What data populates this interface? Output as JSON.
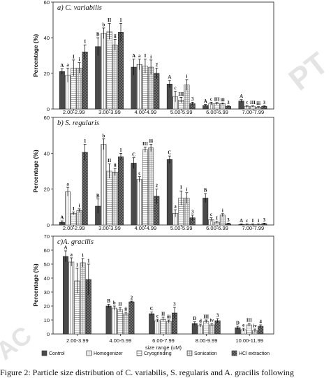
{
  "figure": {
    "caption": "Figure 2:   Particle size distribution of C. variabilis, S. regularis and A. gracilis following",
    "watermark_top": "PT",
    "watermark_bottom": "AC"
  },
  "chart_data": [
    {
      "type": "bar",
      "title": "a)  C. variabilis",
      "ylabel": "Percentage (%)",
      "xlabel": "",
      "ylim": [
        0,
        60
      ],
      "yticks": [
        0,
        20,
        40,
        60
      ],
      "categories": [
        "2.00-2.99",
        "3.00-3.99",
        "4.00-4.99",
        "5.00-5.99",
        "6.00-6.99",
        "7.00-7.99"
      ],
      "series": [
        {
          "values": [
            21,
            35,
            23.5,
            14,
            2,
            4.5
          ],
          "errors": [
            1.5,
            5,
            4.5,
            2,
            0.5,
            0.7
          ],
          "letters": [
            "A",
            "B",
            "A",
            "A",
            "A",
            "A"
          ]
        },
        {
          "values": [
            19,
            42.5,
            25,
            7,
            3,
            1.5
          ],
          "errors": [
            4,
            3,
            3,
            3,
            0.8,
            0.5
          ],
          "letters": [
            "a",
            "b",
            "a",
            "c",
            "c",
            "c"
          ]
        },
        {
          "values": [
            23,
            43.5,
            24,
            5,
            3,
            1.5
          ],
          "errors": [
            4.5,
            4.5,
            4,
            1.5,
            0.6,
            0.3
          ],
          "letters": [
            "I",
            "II",
            "I",
            "III",
            "III",
            "III"
          ]
        },
        {
          "values": [
            23,
            36,
            23.5,
            13.5,
            3,
            1
          ],
          "errors": [
            3,
            3,
            4,
            3,
            0.4,
            0.3
          ],
          "letters": [
            "i",
            "ii",
            "i",
            "i",
            "iii",
            "iii"
          ]
        },
        {
          "values": [
            32,
            43,
            20,
            3,
            1.5,
            1.5
          ],
          "errors": [
            4,
            5,
            3,
            0.8,
            0.3,
            0.3
          ],
          "letters": [
            "1",
            "1",
            "2",
            "3",
            "3",
            "3"
          ]
        }
      ]
    },
    {
      "type": "bar",
      "title": "b)  S. regularis",
      "ylabel": "Percentage (%)",
      "xlabel": "",
      "ylim": [
        0,
        60
      ],
      "yticks": [
        0,
        20,
        40,
        60
      ],
      "categories": [
        "2.00-2.99",
        "3.00-3.99",
        "4.00-4.99",
        "5.00-5.99",
        "6.00-6.99",
        "7.00-7.99"
      ],
      "series": [
        {
          "values": [
            1.5,
            10.5,
            34.5,
            36.5,
            15,
            0.3
          ],
          "errors": [
            0.8,
            4,
            3,
            2,
            2.5,
            0.3
          ],
          "letters": [
            "A",
            "B",
            "C",
            "C",
            "B",
            "A"
          ]
        },
        {
          "values": [
            18.5,
            45,
            25.5,
            6.5,
            3,
            0.3
          ],
          "errors": [
            2.5,
            3,
            1.5,
            2,
            1,
            0.3
          ],
          "letters": [
            "a",
            "b",
            "c",
            "a",
            "c",
            "c"
          ]
        },
        {
          "values": [
            6.5,
            30,
            42,
            15,
            1.5,
            0.3
          ],
          "errors": [
            0.8,
            4,
            1.5,
            4,
            0.5,
            0.3
          ],
          "letters": [
            "I",
            "II",
            "III",
            "I",
            "I",
            "I"
          ]
        },
        {
          "values": [
            8,
            29.5,
            43,
            15,
            5.5,
            0.3
          ],
          "errors": [
            1,
            2,
            2,
            3,
            0.8,
            0.3
          ],
          "letters": [
            "i",
            "ii",
            "iii",
            "i",
            "i",
            "i"
          ]
        },
        {
          "values": [
            40.5,
            38,
            16,
            4,
            0.7,
            0.7
          ],
          "errors": [
            4.5,
            2,
            4,
            1.5,
            0.3,
            0.3
          ],
          "letters": [
            "1",
            "1",
            "2",
            "3",
            "3",
            "3"
          ]
        }
      ]
    },
    {
      "type": "bar",
      "title": "c)A. gracilis",
      "ylabel": "Percentage (%)",
      "xlabel": "size range (uM)",
      "ylim": [
        0,
        70
      ],
      "yticks": [
        0,
        10,
        20,
        30,
        40,
        50,
        60,
        70
      ],
      "categories": [
        "2.00-3.99",
        "4.00-5.99",
        "6.00-7.99",
        "8.00-9.99",
        "10.00-11.99"
      ],
      "series": [
        {
          "name": "Control",
          "values": [
            55.5,
            20,
            14.5,
            7.5,
            4.5
          ],
          "errors": [
            4,
            1.2,
            1.2,
            1.2,
            1
          ],
          "letters": [
            "A",
            "B",
            "C",
            "D",
            "D"
          ]
        },
        {
          "name": "Homogenizer",
          "values": [
            51.5,
            18.5,
            9.5,
            6,
            3
          ],
          "errors": [
            3,
            1.5,
            1,
            1,
            1
          ],
          "letters": [
            "a",
            "b",
            "c",
            "d",
            "e"
          ]
        },
        {
          "name": "Cryogrinding",
          "values": [
            38,
            17.5,
            10.5,
            9,
            6.5
          ],
          "errors": [
            9,
            1.5,
            1.5,
            1,
            1
          ],
          "letters": [
            "I",
            "II",
            "II",
            "III",
            "III"
          ]
        },
        {
          "name": "Sonication",
          "values": [
            51,
            14.5,
            9,
            6.5,
            2.5
          ],
          "errors": [
            3,
            1,
            1,
            1,
            1
          ],
          "letters": [
            "i",
            "ii",
            "iii",
            "iv",
            "iv"
          ]
        },
        {
          "name": "HCl extraction",
          "values": [
            39,
            23,
            15,
            9.5,
            5.5
          ],
          "errors": [
            11,
            0.5,
            4,
            1.5,
            1
          ],
          "letters": [
            "1",
            "2",
            "3",
            "3",
            "4"
          ]
        }
      ],
      "legend": "bottom"
    }
  ]
}
